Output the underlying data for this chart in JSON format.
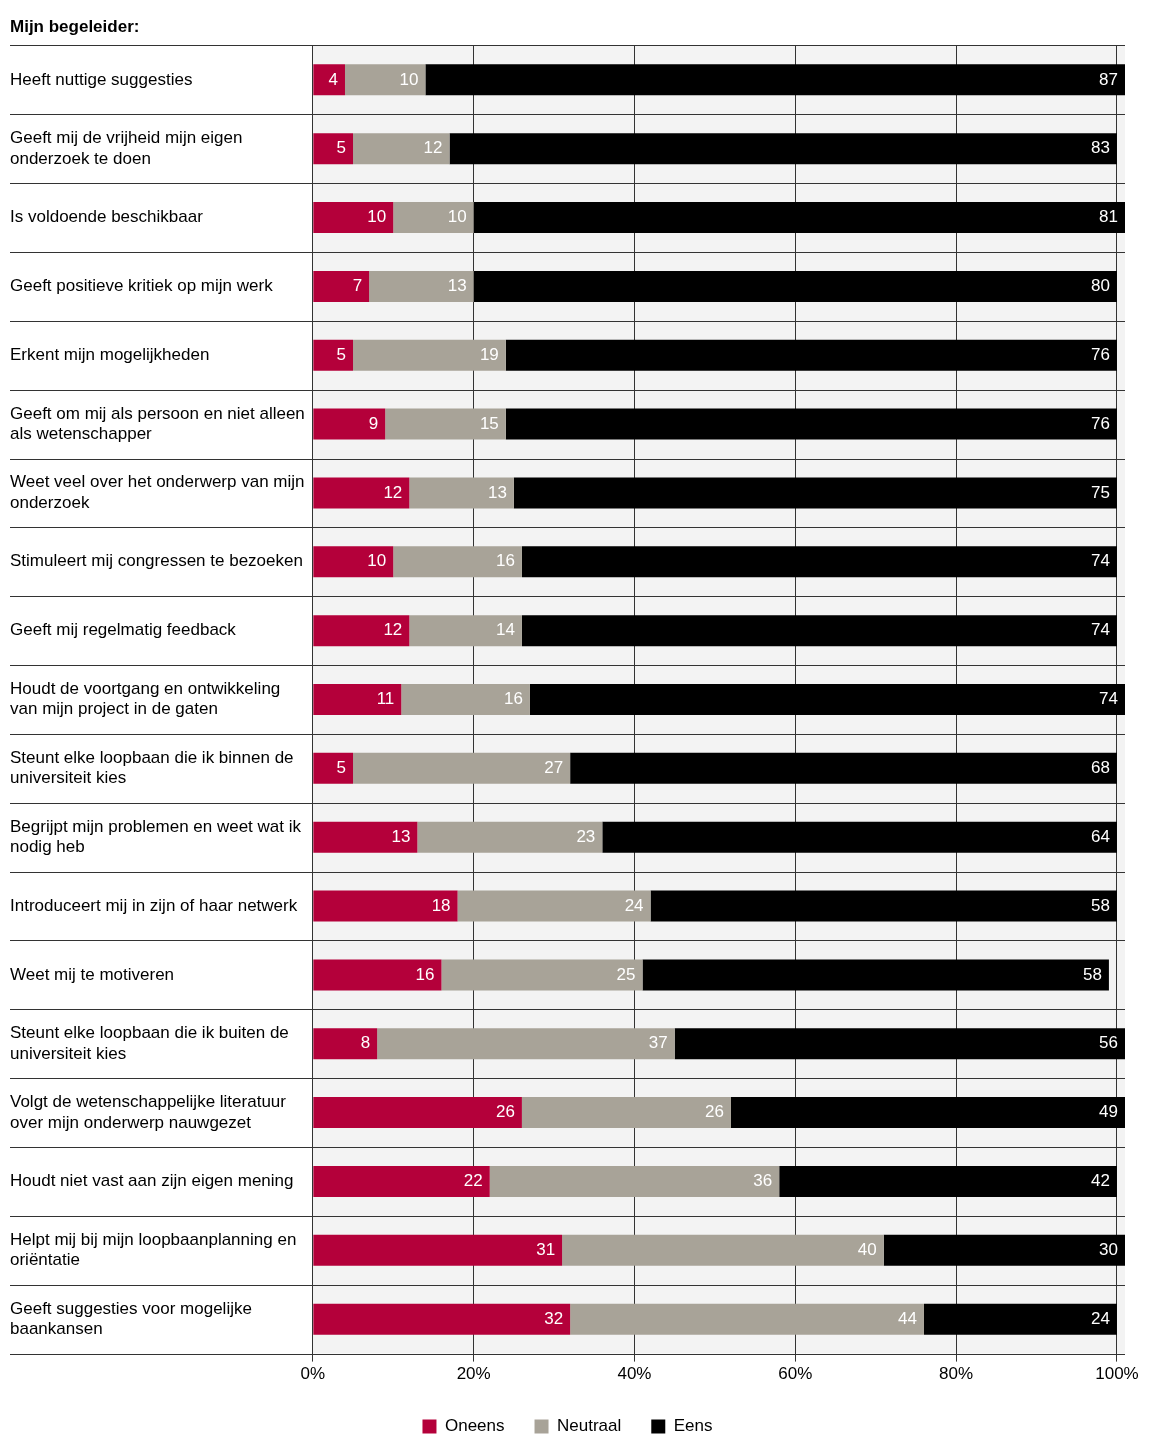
{
  "chart_data": {
    "type": "bar",
    "orientation": "horizontal",
    "stacked": true,
    "title": "Mijn begeleider:",
    "categories": [
      "Heeft nuttige suggesties",
      "Geeft mij de vrijheid mijn eigen onderzoek te doen",
      "Is voldoende beschikbaar",
      "Geeft positieve kritiek op mijn werk",
      "Erkent mijn mogelijkheden",
      "Geeft om mij als persoon en niet alleen als wetenschapper",
      "Weet veel over het onderwerp van mijn onderzoek",
      "Stimuleert mij congressen te bezoeken",
      "Geeft mij regelmatig feedback",
      "Houdt de voortgang en ontwikkeling van mijn project in de gaten",
      "Steunt elke loopbaan die ik binnen de universiteit kies",
      "Begrijpt mijn problemen en weet wat ik nodig heb",
      "Introduceert mij in zijn of haar netwerk",
      "Weet mij te motiveren",
      "Steunt elke loopbaan die ik buiten de universiteit kies",
      "Volgt de wetenschappelijke literatuur over mijn onderwerp nauwgezet",
      "Houdt niet vast aan zijn eigen mening",
      "Helpt mij bij mijn loopbaanplanning en oriëntatie",
      "Geeft suggesties voor mogelijke baankansen"
    ],
    "series": [
      {
        "name": "Oneens",
        "color": "#b4003a",
        "values": [
          4,
          5,
          10,
          7,
          5,
          9,
          12,
          10,
          12,
          11,
          5,
          13,
          18,
          16,
          8,
          26,
          22,
          31,
          32
        ]
      },
      {
        "name": "Neutraal",
        "color": "#a8a398",
        "values": [
          10,
          12,
          10,
          13,
          19,
          15,
          13,
          16,
          14,
          16,
          27,
          23,
          24,
          25,
          37,
          26,
          36,
          40,
          44
        ]
      },
      {
        "name": "Eens",
        "color": "#000000",
        "values": [
          87,
          83,
          81,
          80,
          76,
          76,
          75,
          74,
          74,
          74,
          68,
          64,
          58,
          58,
          56,
          49,
          42,
          30,
          24
        ]
      }
    ],
    "xlim": [
      0,
      101
    ],
    "xticks": [
      {
        "value": 0,
        "label": "0%"
      },
      {
        "value": 20,
        "label": "20%"
      },
      {
        "value": 40,
        "label": "40%"
      },
      {
        "value": 60,
        "label": "60%"
      },
      {
        "value": 80,
        "label": "80%"
      },
      {
        "value": 100,
        "label": "100%"
      }
    ],
    "data_labels": true,
    "grid": "x",
    "legend": "bottom"
  }
}
